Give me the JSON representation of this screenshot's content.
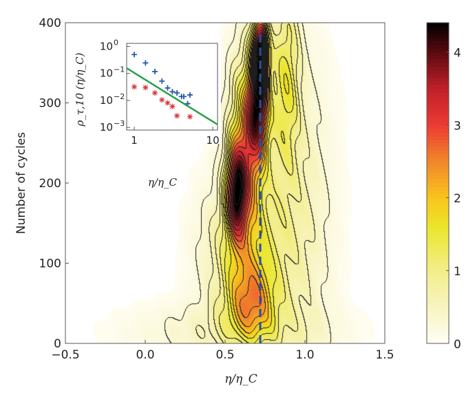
{
  "chart_data": [
    {
      "type": "heatmap",
      "xlabel": "η/η_C",
      "ylabel": "Number of cycles",
      "xlim": [
        -0.5,
        1.5
      ],
      "ylim": [
        0,
        400
      ],
      "xticks": [
        "−0.5",
        "0.0",
        "0.5",
        "1.0",
        "1.5"
      ],
      "xtick_values": [
        -0.5,
        0,
        0.5,
        1,
        1.5
      ],
      "yticks": [
        "0",
        "100",
        "200",
        "300",
        "400"
      ],
      "ytick_values": [
        0,
        100,
        200,
        300,
        400
      ],
      "contour_lines": true,
      "colorbar": {
        "range": [
          0,
          4.4
        ],
        "ticks": [
          "0",
          "1",
          "2",
          "3",
          "4"
        ],
        "tick_values": [
          0,
          1,
          2,
          3,
          4
        ],
        "colormap": [
          [
            0,
            "#fffef6"
          ],
          [
            0.5,
            "#f8f4c0"
          ],
          [
            1,
            "#f3ee8a"
          ],
          [
            1.6,
            "#ebe62c"
          ],
          [
            2,
            "#f9c41c"
          ],
          [
            2.5,
            "#f1872a"
          ],
          [
            3,
            "#ec3a33"
          ],
          [
            3.5,
            "#c0202a"
          ],
          [
            4,
            "#5a0a10"
          ],
          [
            4.4,
            "#000000"
          ]
        ]
      },
      "density_peaks": [
        {
          "eta": 0.72,
          "cycles": 360,
          "value": 4.3,
          "eta_width": 0.035,
          "cycles_width": 35
        },
        {
          "eta": 0.7,
          "cycles": 290,
          "value": 2.8,
          "eta_width": 0.05,
          "cycles_width": 45
        },
        {
          "eta": 0.57,
          "cycles": 190,
          "value": 3.1,
          "eta_width": 0.045,
          "cycles_width": 40
        },
        {
          "eta": 0.63,
          "cycles": 250,
          "value": 1.9,
          "eta_width": 0.08,
          "cycles_width": 80
        },
        {
          "eta": 0.66,
          "cycles": 50,
          "value": 1.8,
          "eta_width": 0.11,
          "cycles_width": 35
        },
        {
          "eta": 0.62,
          "cycles": 120,
          "value": 1.2,
          "eta_width": 0.17,
          "cycles_width": 60
        },
        {
          "eta": 0.88,
          "cycles": 330,
          "value": 1.3,
          "eta_width": 0.06,
          "cycles_width": 80
        },
        {
          "eta": 0.95,
          "cycles": 160,
          "value": 0.6,
          "eta_width": 0.15,
          "cycles_width": 140
        },
        {
          "eta": 0.55,
          "cycles": 15,
          "value": 0.5,
          "eta_width": 0.4,
          "cycles_width": 25
        }
      ],
      "reference_line": {
        "eta": 0.72,
        "color": "#2a4f9e",
        "style": "dashed"
      }
    },
    {
      "type": "scatter",
      "inset": true,
      "xlabel": "η/η_C",
      "ylabel": "ρ_τ,10 (η/η_C)",
      "xscale": "log",
      "yscale": "log",
      "xlim": [
        0.8,
        11.5
      ],
      "ylim": [
        0.0008,
        1.3
      ],
      "xticks": [
        "1",
        "10"
      ],
      "xtick_values": [
        1,
        10
      ],
      "yticks": [
        "10^0",
        "10^-1",
        "10^-2",
        "10^-3"
      ],
      "ytick_values": [
        1,
        0.1,
        0.01,
        0.001
      ],
      "series": [
        {
          "marker": "+",
          "color": "#2a5aa8",
          "x": [
            1,
            1.39,
            1.83,
            2.25,
            2.66,
            3.06,
            3.5,
            4.0,
            4.27,
            4.79,
            5.12
          ],
          "y": [
            0.5,
            0.245,
            0.117,
            0.052,
            0.029,
            0.021,
            0.019,
            0.014,
            0.014,
            0.0076,
            0.016
          ]
        },
        {
          "marker": "*",
          "color": "#d9373c",
          "x": [
            1,
            1.39,
            1.83,
            2.25,
            2.66,
            3.06,
            3.5,
            5.12
          ],
          "y": [
            0.032,
            0.03,
            0.019,
            0.0105,
            0.0081,
            0.006,
            0.0027,
            0.0025
          ]
        },
        {
          "type": "line",
          "color": "#2aa04a",
          "x": [
            0.8,
            11.4
          ],
          "y": [
            0.157,
            0.0013
          ]
        }
      ]
    }
  ]
}
